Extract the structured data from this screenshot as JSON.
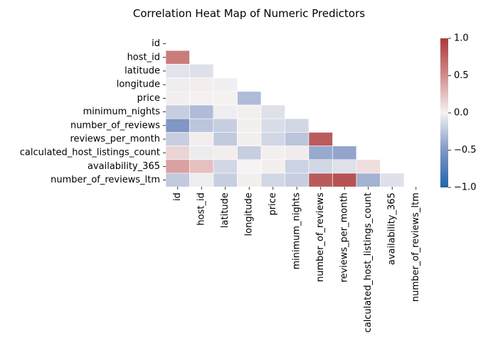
{
  "chart_data": {
    "type": "heatmap",
    "title": "Correlation Heat Map of Numeric Predictors",
    "variables": [
      "id",
      "host_id",
      "latitude",
      "longitude",
      "price",
      "minimum_nights",
      "number_of_reviews",
      "reviews_per_month",
      "calculated_host_listings_count",
      "availability_365",
      "number_of_reviews_ltm"
    ],
    "mask": "upper-triangle-including-diagonal",
    "colormap": "vlag",
    "colorbar": {
      "range": [
        -1.0,
        1.0
      ],
      "ticks": [
        -1.0,
        -0.5,
        0.0,
        0.5,
        1.0
      ],
      "tick_labels": [
        "−1.0",
        "−0.5",
        "0.0",
        "0.5",
        "1.0"
      ]
    },
    "values": [
      [],
      [
        0.6
      ],
      [
        -0.08,
        -0.1
      ],
      [
        -0.03,
        0.03,
        -0.02
      ],
      [
        0.02,
        0.01,
        0.01,
        -0.3
      ],
      [
        -0.2,
        -0.3,
        -0.03,
        0.02,
        -0.1
      ],
      [
        -0.5,
        -0.25,
        -0.2,
        0.02,
        -0.12,
        -0.15
      ],
      [
        -0.2,
        0.03,
        -0.22,
        0.02,
        -0.15,
        -0.25,
        0.8
      ],
      [
        0.15,
        -0.04,
        0.03,
        -0.2,
        0.02,
        0.04,
        -0.4,
        -0.42
      ],
      [
        0.4,
        0.25,
        -0.15,
        0.0,
        0.02,
        -0.18,
        -0.15,
        -0.1,
        0.1
      ],
      [
        -0.22,
        -0.03,
        -0.2,
        0.02,
        -0.15,
        -0.2,
        0.8,
        0.85,
        -0.35,
        -0.1
      ]
    ]
  }
}
